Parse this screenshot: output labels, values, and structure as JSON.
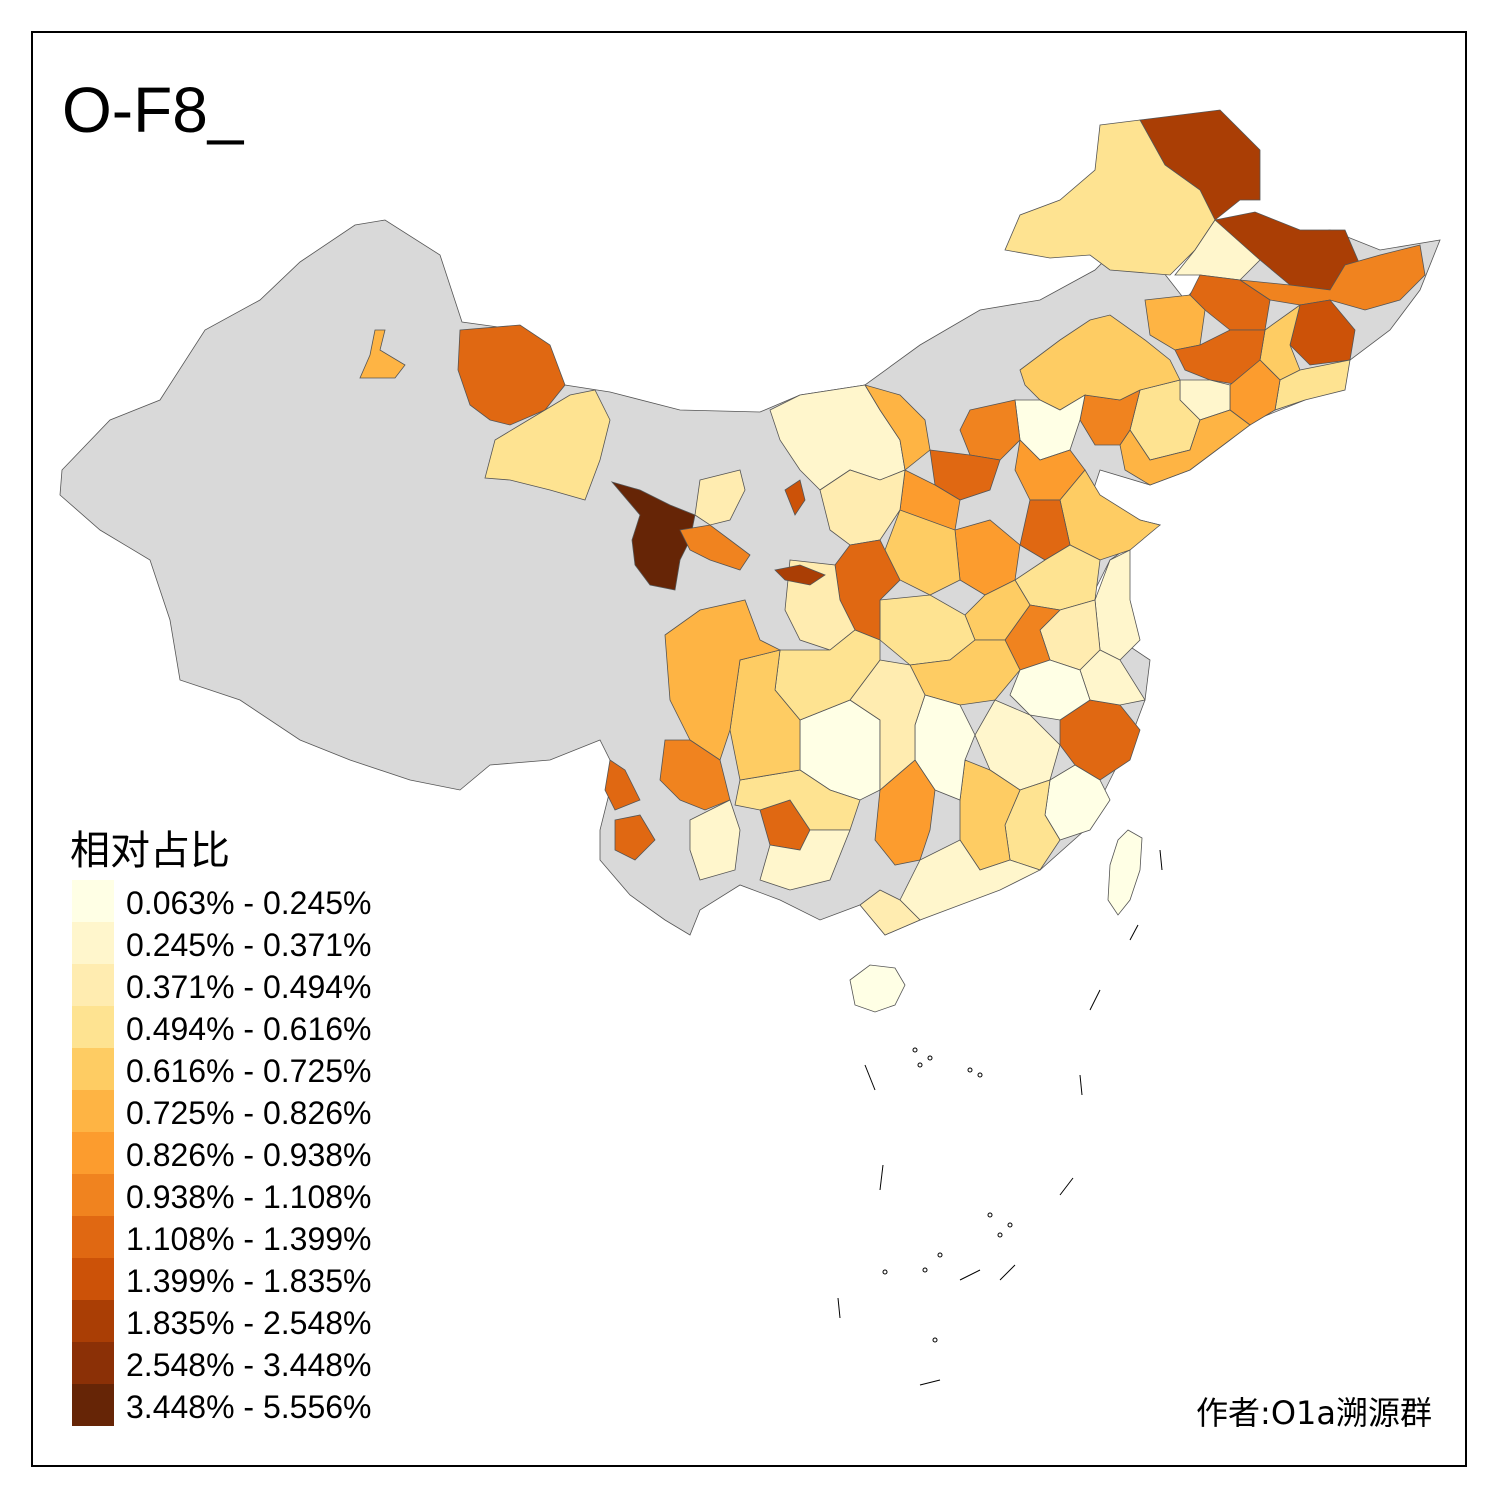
{
  "title": "O-F8_",
  "legend": {
    "title": "相对占比",
    "classes": [
      {
        "label": "0.063% - 0.245%",
        "color": "#ffffe5"
      },
      {
        "label": "0.245% - 0.371%",
        "color": "#fff6cc"
      },
      {
        "label": "0.371% - 0.494%",
        "color": "#ffecb0"
      },
      {
        "label": "0.494% - 0.616%",
        "color": "#fee391"
      },
      {
        "label": "0.616% - 0.725%",
        "color": "#fecc63"
      },
      {
        "label": "0.725% - 0.826%",
        "color": "#feb444"
      },
      {
        "label": "0.826% - 0.938%",
        "color": "#fc9c2e"
      },
      {
        "label": "0.938% - 1.108%",
        "color": "#f0831f"
      },
      {
        "label": "1.108% - 1.399%",
        "color": "#e06812"
      },
      {
        "label": "1.399% - 1.835%",
        "color": "#cc5208"
      },
      {
        "label": "1.835% - 2.548%",
        "color": "#aa3e05"
      },
      {
        "label": "2.548% - 3.448%",
        "color": "#8b3006"
      },
      {
        "label": "3.448% - 5.556%",
        "color": "#662506"
      }
    ]
  },
  "no_data_color": "#d9d9d9",
  "credit": "作者:O1a溯源群"
}
